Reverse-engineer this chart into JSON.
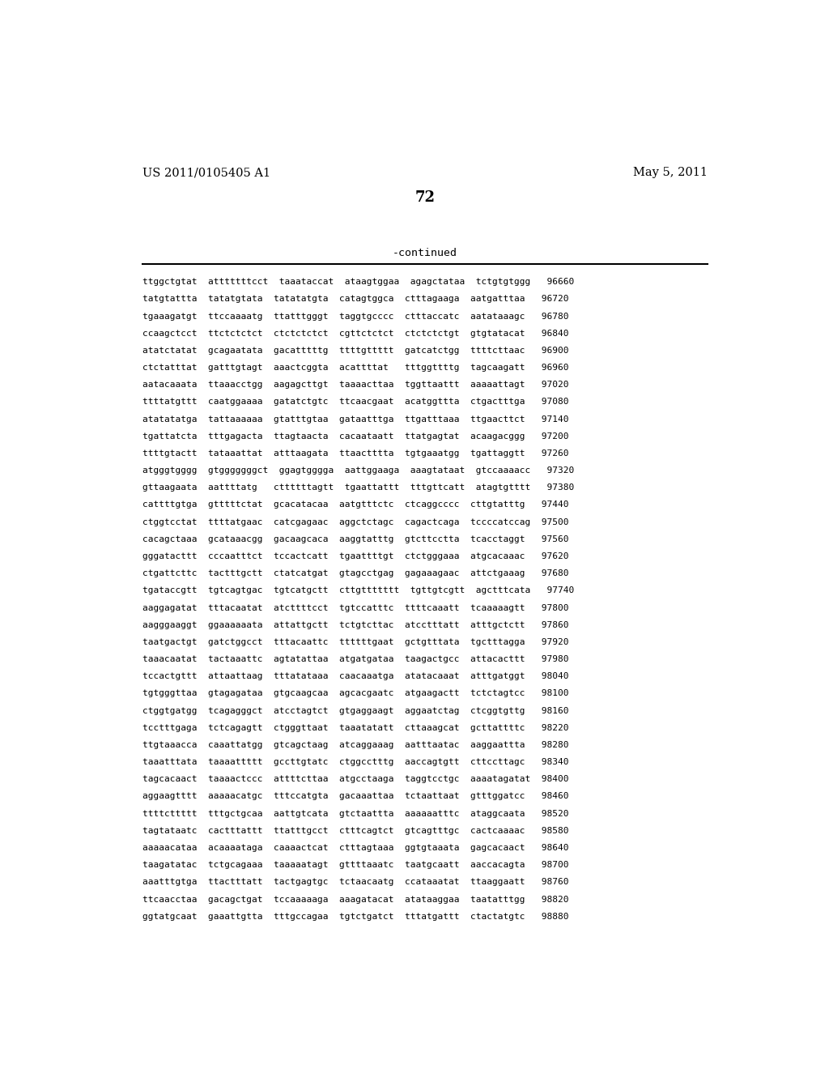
{
  "header_left": "US 2011/0105405 A1",
  "header_right": "May 5, 2011",
  "page_number": "72",
  "continued_label": "-continued",
  "background_color": "#ffffff",
  "text_color": "#000000",
  "sequence_lines": [
    "ttggctgtat  atttttttcct  taaataccat  ataagtggaa  agagctataa  tctgtgtggg   96660",
    "tatgtattta  tatatgtata  tatatatgta  catagtggca  ctttagaaga  aatgatttaa   96720",
    "tgaaagatgt  ttccaaaatg  ttatttgggt  taggtgcccc  ctttaccatc  aatataaagc   96780",
    "ccaagctcct  ttctctctct  ctctctctct  cgttctctct  ctctctctgt  gtgtatacat   96840",
    "atatctatat  gcagaatata  gacatttttg  ttttgttttt  gatcatctgg  ttttcttaac   96900",
    "ctctatttat  gatttgtagt  aaactcggta  acattttat   tttggttttg  tagcaagatt   96960",
    "aatacaaata  ttaaacctgg  aagagcttgt  taaaacttaa  tggttaattt  aaaaattagt   97020",
    "ttttatgttt  caatggaaaa  gatatctgtc  ttcaacgaat  acatggttta  ctgactttga   97080",
    "atatatatga  tattaaaaaa  gtatttgtaa  gataatttga  ttgatttaaa  ttgaacttct   97140",
    "tgattatcta  tttgagacta  ttagtaacta  cacaataatt  ttatgagtat  acaagacggg   97200",
    "ttttgtactt  tataaattat  atttaagata  ttaactttta  tgtgaaatgg  tgattaggtt   97260",
    "atgggtgggg  gtgggggggct  ggagtgggga  aattggaaga  aaagtataat  gtccaaaacc   97320",
    "gttaagaata  aattttatg   cttttttagtt  tgaattattt  tttgttcatt  atagtgtttt   97380",
    "cattttgtga  gtttttctat  gcacatacaa  aatgtttctc  ctcaggcccc  cttgtatttg   97440",
    "ctggtcctat  ttttatgaac  catcgagaac  aggctctagc  cagactcaga  tccccatccag  97500",
    "cacagctaaa  gcataaacgg  gacaagcaca  aaggtatttg  gtcttcctta  tcacctaggt   97560",
    "gggatacttt  cccaatttct  tccactcatt  tgaattttgt  ctctgggaaa  atgcacaaac   97620",
    "ctgattcttc  tactttgctt  ctatcatgat  gtagcctgag  gagaaagaac  attctgaaag   97680",
    "tgataccgtt  tgtcagtgac  tgtcatgctt  cttgttttttt  tgttgtcgtt  agctttcata   97740",
    "aaggagatat  tttacaatat  atcttttcct  tgtccatttc  ttttcaaatt  tcaaaaagtt   97800",
    "aagggaaggt  ggaaaaaata  attattgctt  tctgtcttac  atcctttatt  atttgctctt   97860",
    "taatgactgt  gatctggcct  tttacaattc  ttttttgaat  gctgtttata  tgctttagga   97920",
    "taaacaatat  tactaaattc  agtatattaa  atgatgataa  taagactgcc  attacacttt   97980",
    "tccactgttt  attaattaag  tttatataaa  caacaaatga  atatacaaat  atttgatggt   98040",
    "tgtgggttaa  gtagagataa  gtgcaagcaa  agcacgaatc  atgaagactt  tctctagtcc   98100",
    "ctggtgatgg  tcagagggct  atcctagtct  gtgaggaagt  aggaatctag  ctcggtgttg   98160",
    "tcctttgaga  tctcagagtt  ctgggttaat  taaatatatt  cttaaagcat  gcttattttc   98220",
    "ttgtaaacca  caaattatgg  gtcagctaag  atcaggaaag  aatttaatac  aaggaattta   98280",
    "taaatttata  taaaattttt  gccttgtatc  ctggcctttg  aaccagtgtt  cttccttagc   98340",
    "tagcacaact  taaaactccc  attttcttaa  atgcctaaga  taggtcctgc  aaaatagatat  98400",
    "aggaagtttt  aaaaacatgc  tttccatgta  gacaaattaa  tctaattaat  gtttggatcc   98460",
    "ttttcttttt  tttgctgcaa  aattgtcata  gtctaattta  aaaaaatttc  ataggcaata   98520",
    "tagtataatc  cactttattt  ttatttgcct  ctttcagtct  gtcagtttgc  cactcaaaac   98580",
    "aaaaacataa  acaaaataga  caaaactcat  ctttagtaaa  ggtgtaaata  gagcacaact   98640",
    "taagatatac  tctgcagaaa  taaaaatagt  gttttaaatc  taatgcaatt  aaccacagta   98700",
    "aaatttgtga  ttactttatt  tactgagtgc  tctaacaatg  ccataaatat  ttaaggaatt   98760",
    "ttcaacctaa  gacagctgat  tccaaaaaga  aaagatacat  atataaggaa  taatatttgg   98820",
    "ggtatgcaat  gaaattgtta  tttgccagaa  tgtctgatct  tttatgattt  ctactatgtc   98880"
  ]
}
